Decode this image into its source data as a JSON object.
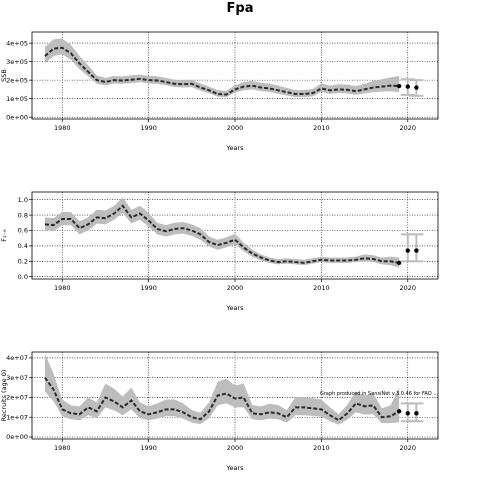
{
  "title": "Fpa",
  "colors": {
    "band": "#bdbdbd",
    "line": "#2b2b2b",
    "projection_band": "#bdbdbd",
    "grid": "#000000"
  },
  "chart_data": [
    {
      "type": "line",
      "title": "",
      "xlabel": "Years",
      "ylabel": "SSB",
      "xlim": [
        1976.5,
        2023.5
      ],
      "ylim": [
        -10000,
        460000
      ],
      "xticks": [
        1980,
        1990,
        2000,
        2010,
        2020
      ],
      "yticks": [
        0,
        100000,
        200000,
        300000,
        400000
      ],
      "ytick_labels": [
        "0e+00",
        "1e+05",
        "2e+05",
        "3e+05",
        "4e+05"
      ],
      "grid": true,
      "grid_style": "dotted",
      "x": [
        1978,
        1979,
        1980,
        1981,
        1982,
        1983,
        1984,
        1985,
        1986,
        1987,
        1988,
        1989,
        1990,
        1991,
        1992,
        1993,
        1994,
        1995,
        1996,
        1997,
        1998,
        1999,
        2000,
        2001,
        2002,
        2003,
        2004,
        2005,
        2006,
        2007,
        2008,
        2009,
        2010,
        2011,
        2012,
        2013,
        2014,
        2015,
        2016,
        2017,
        2018,
        2019
      ],
      "series": [
        {
          "role": "estimate",
          "values": [
            330000,
            370000,
            375000,
            345000,
            290000,
            245000,
            200000,
            190000,
            200000,
            198000,
            202000,
            207000,
            200000,
            198000,
            190000,
            180000,
            178000,
            180000,
            160000,
            145000,
            125000,
            122000,
            150000,
            165000,
            170000,
            160000,
            155000,
            145000,
            135000,
            125000,
            125000,
            130000,
            155000,
            145000,
            150000,
            148000,
            140000,
            150000,
            160000,
            165000,
            170000,
            168000
          ]
        },
        {
          "role": "lower",
          "values": [
            290000,
            330000,
            340000,
            310000,
            260000,
            220000,
            180000,
            172000,
            182000,
            180000,
            184000,
            189000,
            182000,
            180000,
            172000,
            163000,
            160000,
            162000,
            143000,
            129000,
            110000,
            108000,
            133000,
            146000,
            150000,
            141000,
            136000,
            126000,
            117000,
            108000,
            108000,
            112000,
            135000,
            126000,
            130000,
            128000,
            121000,
            128000,
            135000,
            138000,
            140000,
            135000
          ]
        },
        {
          "role": "upper",
          "values": [
            380000,
            420000,
            425000,
            390000,
            330000,
            280000,
            225000,
            212000,
            222000,
            220000,
            226000,
            230000,
            223000,
            221000,
            212000,
            202000,
            200000,
            202000,
            182000,
            165000,
            145000,
            142000,
            172000,
            190000,
            196000,
            186000,
            181000,
            170000,
            158000,
            146000,
            146000,
            152000,
            182000,
            170000,
            178000,
            176000,
            168000,
            180000,
            195000,
            205000,
            215000,
            222000
          ]
        }
      ],
      "projection": {
        "x": [
          2020,
          2021
        ],
        "values": [
          165000,
          160000
        ],
        "lower": [
          120000,
          115000
        ],
        "upper": [
          205000,
          200000
        ]
      }
    },
    {
      "type": "line",
      "title": "",
      "xlabel": "Years",
      "ylabel": "F₂₋₆",
      "xlim": [
        1976.5,
        2023.5
      ],
      "ylim": [
        -0.03,
        1.1
      ],
      "xticks": [
        1980,
        1990,
        2000,
        2010,
        2020
      ],
      "yticks": [
        0.0,
        0.2,
        0.4,
        0.6,
        0.8,
        1.0
      ],
      "ytick_labels": [
        "0.0",
        "0.2",
        "0.4",
        "0.6",
        "0.8",
        "1.0"
      ],
      "grid": true,
      "grid_style": "dotted",
      "x": [
        1978,
        1979,
        1980,
        1981,
        1982,
        1983,
        1984,
        1985,
        1986,
        1987,
        1988,
        1989,
        1990,
        1991,
        1992,
        1993,
        1994,
        1995,
        1996,
        1997,
        1998,
        1999,
        2000,
        2001,
        2002,
        2003,
        2004,
        2005,
        2006,
        2007,
        2008,
        2009,
        2010,
        2011,
        2012,
        2013,
        2014,
        2015,
        2016,
        2017,
        2018,
        2019
      ],
      "series": [
        {
          "role": "estimate",
          "values": [
            0.68,
            0.67,
            0.75,
            0.75,
            0.63,
            0.68,
            0.77,
            0.76,
            0.82,
            0.92,
            0.77,
            0.82,
            0.73,
            0.62,
            0.59,
            0.62,
            0.63,
            0.6,
            0.55,
            0.45,
            0.41,
            0.44,
            0.48,
            0.38,
            0.3,
            0.25,
            0.21,
            0.19,
            0.2,
            0.19,
            0.18,
            0.2,
            0.22,
            0.21,
            0.21,
            0.21,
            0.22,
            0.24,
            0.23,
            0.2,
            0.2,
            0.18
          ]
        },
        {
          "role": "lower",
          "values": [
            0.6,
            0.59,
            0.67,
            0.67,
            0.55,
            0.6,
            0.69,
            0.68,
            0.74,
            0.83,
            0.69,
            0.74,
            0.65,
            0.55,
            0.52,
            0.55,
            0.56,
            0.53,
            0.48,
            0.39,
            0.35,
            0.38,
            0.42,
            0.33,
            0.26,
            0.21,
            0.18,
            0.16,
            0.17,
            0.16,
            0.15,
            0.17,
            0.19,
            0.18,
            0.18,
            0.18,
            0.19,
            0.2,
            0.19,
            0.16,
            0.15,
            0.12
          ]
        },
        {
          "role": "upper",
          "values": [
            0.77,
            0.76,
            0.84,
            0.84,
            0.72,
            0.77,
            0.87,
            0.86,
            0.92,
            1.03,
            0.87,
            0.92,
            0.83,
            0.7,
            0.67,
            0.7,
            0.71,
            0.68,
            0.63,
            0.52,
            0.48,
            0.51,
            0.56,
            0.44,
            0.35,
            0.29,
            0.25,
            0.23,
            0.24,
            0.23,
            0.22,
            0.24,
            0.26,
            0.25,
            0.25,
            0.25,
            0.26,
            0.29,
            0.28,
            0.25,
            0.26,
            0.25
          ]
        }
      ],
      "projection": {
        "x": [
          2020,
          2021
        ],
        "values": [
          0.34,
          0.34
        ],
        "lower": [
          0.2,
          0.2
        ],
        "upper": [
          0.55,
          0.55
        ]
      }
    },
    {
      "type": "line",
      "title": "",
      "xlabel": "Years",
      "ylabel": "Recruits (age 0)",
      "xlim": [
        1976.5,
        2023.5
      ],
      "ylim": [
        -1000000,
        43000000
      ],
      "xticks": [
        1980,
        1990,
        2000,
        2010,
        2020
      ],
      "yticks": [
        0,
        10000000,
        20000000,
        30000000,
        40000000
      ],
      "ytick_labels": [
        "0e+00",
        "1e+07",
        "2e+07",
        "3e+07",
        "4e+07"
      ],
      "grid": true,
      "grid_style": "dotted",
      "annotation": "Graph produced in SensiNet v.3.0.46 for FAO ...",
      "x": [
        1978,
        1979,
        1980,
        1981,
        1982,
        1983,
        1984,
        1985,
        1986,
        1987,
        1988,
        1989,
        1990,
        1991,
        1992,
        1993,
        1994,
        1995,
        1996,
        1997,
        1998,
        1999,
        2000,
        2001,
        2002,
        2003,
        2004,
        2005,
        2006,
        2007,
        2008,
        2009,
        2010,
        2011,
        2012,
        2013,
        2014,
        2015,
        2016,
        2017,
        2018,
        2019
      ],
      "series": [
        {
          "role": "estimate",
          "values": [
            30000000,
            24000000,
            14000000,
            12000000,
            11500000,
            15000000,
            13000000,
            20000000,
            18000000,
            15000000,
            18500000,
            13000000,
            11500000,
            12500000,
            14000000,
            14000000,
            12500000,
            10000000,
            9000000,
            13000000,
            21000000,
            22000000,
            19500000,
            20000000,
            12000000,
            11500000,
            12500000,
            12000000,
            10000000,
            15000000,
            15000000,
            14500000,
            14000000,
            11000000,
            8500000,
            12000000,
            17000000,
            15500000,
            16000000,
            10000000,
            10500000,
            13000000
          ]
        },
        {
          "role": "lower",
          "values": [
            23000000,
            18000000,
            10500000,
            9000000,
            8500000,
            11000000,
            9500000,
            15000000,
            13500000,
            11000000,
            14000000,
            9500000,
            8500000,
            9300000,
            10500000,
            10500000,
            9300000,
            7300000,
            6500000,
            9500000,
            16000000,
            17000000,
            15000000,
            15000000,
            9000000,
            8500000,
            9300000,
            9000000,
            7300000,
            11000000,
            11000000,
            10700000,
            10300000,
            8000000,
            6200000,
            8800000,
            12500000,
            11300000,
            11500000,
            7000000,
            7000000,
            7500000
          ]
        },
        {
          "role": "upper",
          "values": [
            42000000,
            32000000,
            19000000,
            16000000,
            15500000,
            20000000,
            17500000,
            27000000,
            24500000,
            20500000,
            25000000,
            17500000,
            15500000,
            17000000,
            19000000,
            19000000,
            17000000,
            13600000,
            12300000,
            17500000,
            28000000,
            29500000,
            26000000,
            27000000,
            16200000,
            15500000,
            16800000,
            16200000,
            13600000,
            20200000,
            20200000,
            19600000,
            18900000,
            15000000,
            11500000,
            16300000,
            23000000,
            21000000,
            22000000,
            14500000,
            16000000,
            25000000
          ]
        }
      ],
      "projection": {
        "x": [
          2020,
          2021
        ],
        "values": [
          12000000,
          12000000
        ],
        "lower": [
          8000000,
          8000000
        ],
        "upper": [
          17000000,
          17000000
        ]
      }
    }
  ]
}
